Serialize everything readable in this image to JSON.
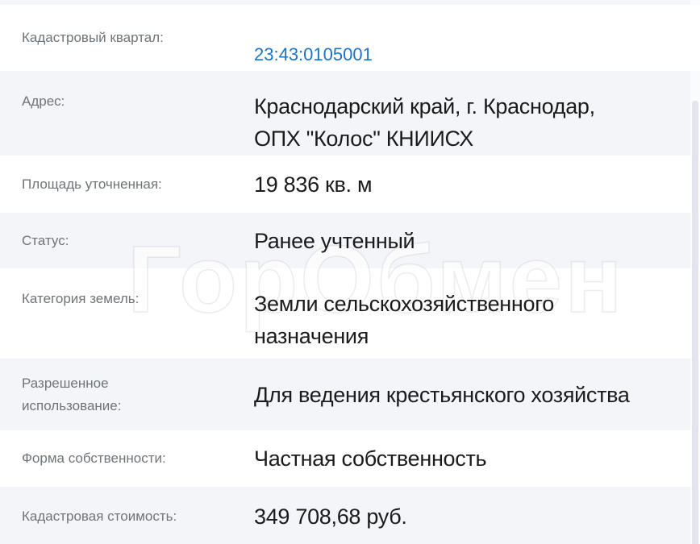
{
  "watermark": "ГорОбмен",
  "colors": {
    "row_alt_bg": "#f4f5f8",
    "label_text": "#6f7478",
    "value_text": "#1b1b1d",
    "link_blue": "#1b74c5",
    "scrollbar_thumb": "#e4e5ec"
  },
  "table": {
    "rows": [
      {
        "label": "Кадастровый квартал:",
        "value": "23:43:0105001"
      },
      {
        "label": "Адрес:",
        "value": "Краснодарский край, г. Краснодар,\nОПХ \"Колос\" КНИИСХ"
      },
      {
        "label": "Площадь уточненная:",
        "value": "19 836 кв. м"
      },
      {
        "label": "Статус:",
        "value": "Ранее учтенный"
      },
      {
        "label": "Категория земель:",
        "value": "Земли сельскохозяйственного\nназначения"
      },
      {
        "label": "Разрешенное использование:",
        "value": "Для ведения крестьянского хозяйства"
      },
      {
        "label": "Форма собственности:",
        "value": "Частная собственность"
      },
      {
        "label": "Кадастровая стоимость:",
        "value": "349 708,68 руб."
      }
    ]
  }
}
